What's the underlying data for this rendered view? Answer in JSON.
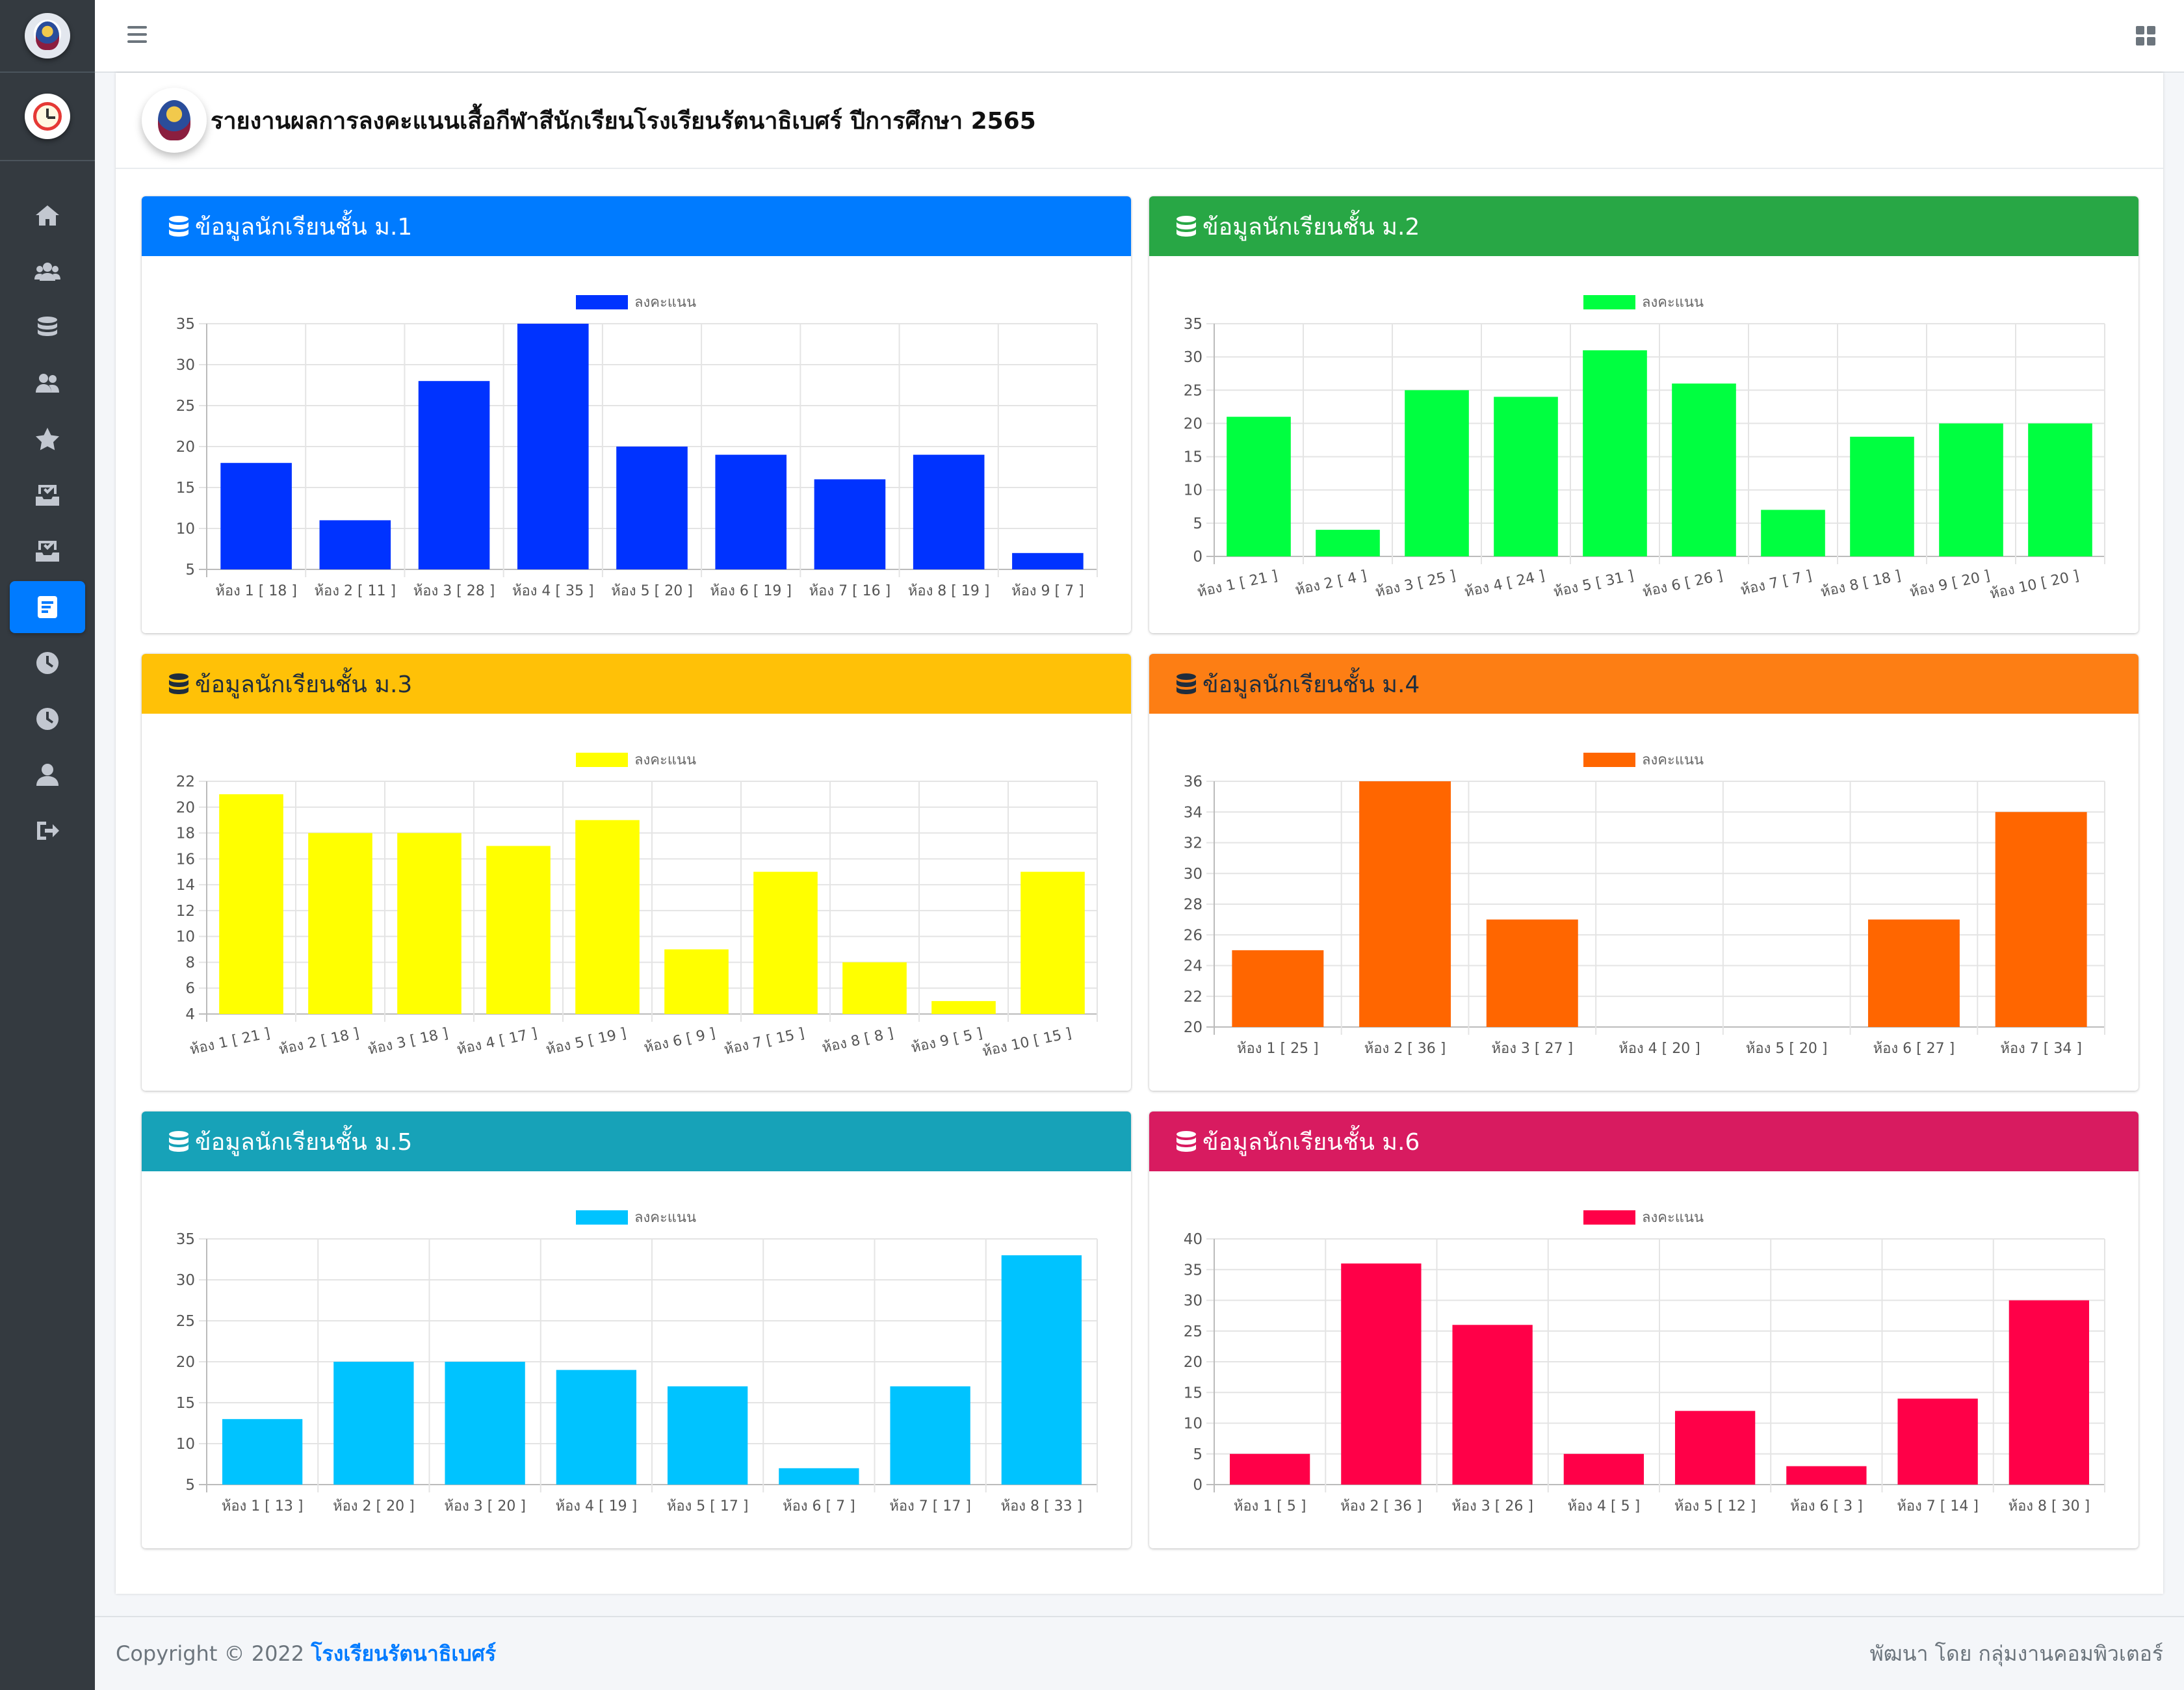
{
  "header": {
    "title": "รายงานผลการลงคะแนนเสื้อกีฬาสีนักเรียนโรงเรียนรัตนาธิเบศร์ ปีการศึกษา 2565"
  },
  "sidebar": {
    "items": [
      {
        "icon": "home-icon"
      },
      {
        "icon": "users-icon"
      },
      {
        "icon": "database-icon"
      },
      {
        "icon": "user-group-icon"
      },
      {
        "icon": "star-icon"
      },
      {
        "icon": "tray-check-icon"
      },
      {
        "icon": "tray-check-icon"
      },
      {
        "icon": "report-icon",
        "active": true
      },
      {
        "icon": "clock-icon"
      },
      {
        "icon": "clock-icon"
      },
      {
        "icon": "user-icon"
      },
      {
        "icon": "logout-icon"
      }
    ]
  },
  "footer": {
    "copyright": "Copyright © 2022",
    "school": "โรงเรียนรัตนาธิเบศร์",
    "developer": "พัฒนา โดย กลุ่มงานคอมพิวเตอร์"
  },
  "chart_data": [
    {
      "type": "bar",
      "title": "ข้อมูลนักเรียนชั้น ม.1",
      "header_color": "#007bff",
      "bar_color": "#0033ff",
      "categories": [
        "ห้อง 1 [ 18 ]",
        "ห้อง 2 [ 11 ]",
        "ห้อง 3 [ 28 ]",
        "ห้อง 4 [ 35 ]",
        "ห้อง 5 [ 20 ]",
        "ห้อง 6 [ 19 ]",
        "ห้อง 7 [ 16 ]",
        "ห้อง 8 [ 19 ]",
        "ห้อง 9 [ 7 ]"
      ],
      "series": [
        {
          "name": "ลงคะแนน",
          "values": [
            18,
            11,
            28,
            35,
            20,
            19,
            16,
            19,
            7
          ]
        }
      ],
      "yticks": [
        5,
        10,
        15,
        20,
        25,
        30,
        35
      ],
      "ylim": [
        5,
        35
      ],
      "rotate_labels": false
    },
    {
      "type": "bar",
      "title": "ข้อมูลนักเรียนชั้น ม.2",
      "header_color": "#28a745",
      "bar_color": "#00ff40",
      "categories": [
        "ห้อง 1 [ 21 ]",
        "ห้อง 2 [ 4 ]",
        "ห้อง 3 [ 25 ]",
        "ห้อง 4 [ 24 ]",
        "ห้อง 5 [ 31 ]",
        "ห้อง 6 [ 26 ]",
        "ห้อง 7 [ 7 ]",
        "ห้อง 8 [ 18 ]",
        "ห้อง 9 [ 20 ]",
        "ห้อง 10 [ 20 ]"
      ],
      "series": [
        {
          "name": "ลงคะแนน",
          "values": [
            21,
            4,
            25,
            24,
            31,
            26,
            7,
            18,
            20,
            20
          ]
        }
      ],
      "yticks": [
        0,
        5,
        10,
        15,
        20,
        25,
        30,
        35
      ],
      "ylim": [
        0,
        35
      ],
      "rotate_labels": true
    },
    {
      "type": "bar",
      "title": "ข้อมูลนักเรียนชั้น ม.3",
      "header_color": "#ffc107",
      "bar_color": "#ffff00",
      "dark_header_text": true,
      "categories": [
        "ห้อง 1 [ 21 ]",
        "ห้อง 2 [ 18 ]",
        "ห้อง 3 [ 18 ]",
        "ห้อง 4 [ 17 ]",
        "ห้อง 5 [ 19 ]",
        "ห้อง 6 [ 9 ]",
        "ห้อง 7 [ 15 ]",
        "ห้อง 8 [ 8 ]",
        "ห้อง 9 [ 5 ]",
        "ห้อง 10 [ 15 ]"
      ],
      "series": [
        {
          "name": "ลงคะแนน",
          "values": [
            21,
            18,
            18,
            17,
            19,
            9,
            15,
            8,
            5,
            15
          ]
        }
      ],
      "yticks": [
        4,
        6,
        8,
        10,
        12,
        14,
        16,
        18,
        20,
        22
      ],
      "ylim": [
        4,
        22
      ],
      "rotate_labels": true
    },
    {
      "type": "bar",
      "title": "ข้อมูลนักเรียนชั้น ม.4",
      "header_color": "#fd7e14",
      "bar_color": "#ff6600",
      "dark_header_text": true,
      "categories": [
        "ห้อง 1 [ 25 ]",
        "ห้อง 2 [ 36 ]",
        "ห้อง 3 [ 27 ]",
        "ห้อง 4 [ 20 ]",
        "ห้อง 5 [ 20 ]",
        "ห้อง 6 [ 27 ]",
        "ห้อง 7 [ 34 ]"
      ],
      "series": [
        {
          "name": "ลงคะแนน",
          "values": [
            25,
            36,
            27,
            20,
            20,
            27,
            34
          ]
        }
      ],
      "yticks": [
        20,
        22,
        24,
        26,
        28,
        30,
        32,
        34,
        36
      ],
      "ylim": [
        20,
        36
      ],
      "rotate_labels": false
    },
    {
      "type": "bar",
      "title": "ข้อมูลนักเรียนชั้น ม.5",
      "header_color": "#17a2b8",
      "bar_color": "#00c3ff",
      "categories": [
        "ห้อง 1 [ 13 ]",
        "ห้อง 2 [ 20 ]",
        "ห้อง 3 [ 20 ]",
        "ห้อง 4 [ 19 ]",
        "ห้อง 5 [ 17 ]",
        "ห้อง 6 [ 7 ]",
        "ห้อง 7 [ 17 ]",
        "ห้อง 8 [ 33 ]"
      ],
      "series": [
        {
          "name": "ลงคะแนน",
          "values": [
            13,
            20,
            20,
            19,
            17,
            7,
            17,
            33
          ]
        }
      ],
      "yticks": [
        5,
        10,
        15,
        20,
        25,
        30,
        35
      ],
      "ylim": [
        5,
        35
      ],
      "rotate_labels": false
    },
    {
      "type": "bar",
      "title": "ข้อมูลนักเรียนชั้น ม.6",
      "header_color": "#d81b60",
      "bar_color": "#ff0048",
      "categories": [
        "ห้อง 1 [ 5 ]",
        "ห้อง 2 [ 36 ]",
        "ห้อง 3 [ 26 ]",
        "ห้อง 4 [ 5 ]",
        "ห้อง 5 [ 12 ]",
        "ห้อง 6 [ 3 ]",
        "ห้อง 7 [ 14 ]",
        "ห้อง 8 [ 30 ]"
      ],
      "series": [
        {
          "name": "ลงคะแนน",
          "values": [
            5,
            36,
            26,
            5,
            12,
            3,
            14,
            30
          ]
        }
      ],
      "yticks": [
        0,
        5,
        10,
        15,
        20,
        25,
        30,
        35,
        40
      ],
      "ylim": [
        0,
        40
      ],
      "rotate_labels": false
    }
  ]
}
